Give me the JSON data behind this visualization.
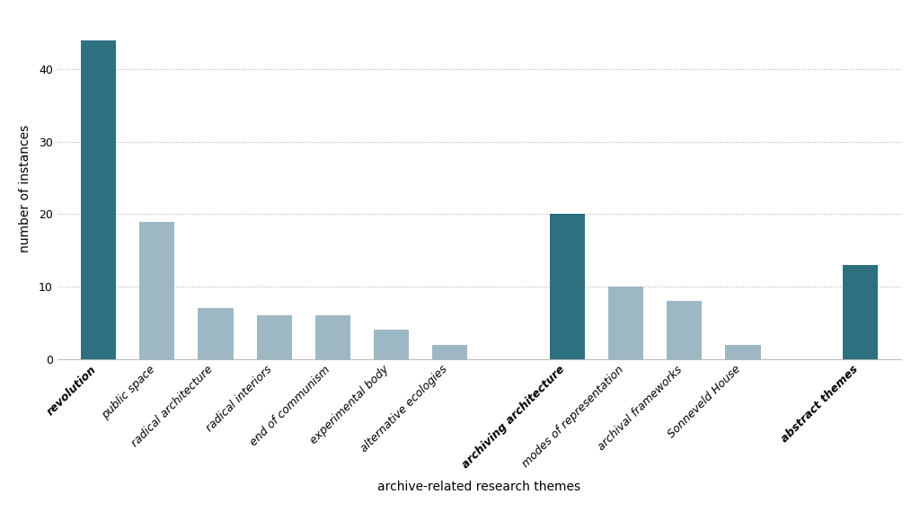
{
  "categories": [
    "revolution",
    "public space",
    "radical architecture",
    "radical interiors",
    "end of communism",
    "experimental body",
    "alternative ecologies",
    "",
    "archiving architecture",
    "modes of representation",
    "archival frameworks",
    "Sonneveld House",
    "",
    "abstract themes"
  ],
  "values": [
    44,
    19,
    7,
    6,
    6,
    4,
    2,
    0,
    20,
    10,
    8,
    2,
    0,
    13
  ],
  "bar_colors": [
    "#2e7080",
    "#9db8c4",
    "#9db8c4",
    "#9db8c4",
    "#9db8c4",
    "#9db8c4",
    "#9db8c4",
    "none",
    "#2e7080",
    "#9db8c4",
    "#9db8c4",
    "#9db8c4",
    "none",
    "#2e7080"
  ],
  "bold_italic_indices": [
    0,
    8,
    13
  ],
  "xlabel": "archive-related research themes",
  "ylabel": "number of instances",
  "ylim": [
    0,
    47
  ],
  "yticks": [
    0,
    10,
    20,
    30,
    40
  ],
  "background_color": "#ffffff",
  "grid_color": "#aaaaaa",
  "axis_fontsize": 10,
  "tick_fontsize": 9
}
